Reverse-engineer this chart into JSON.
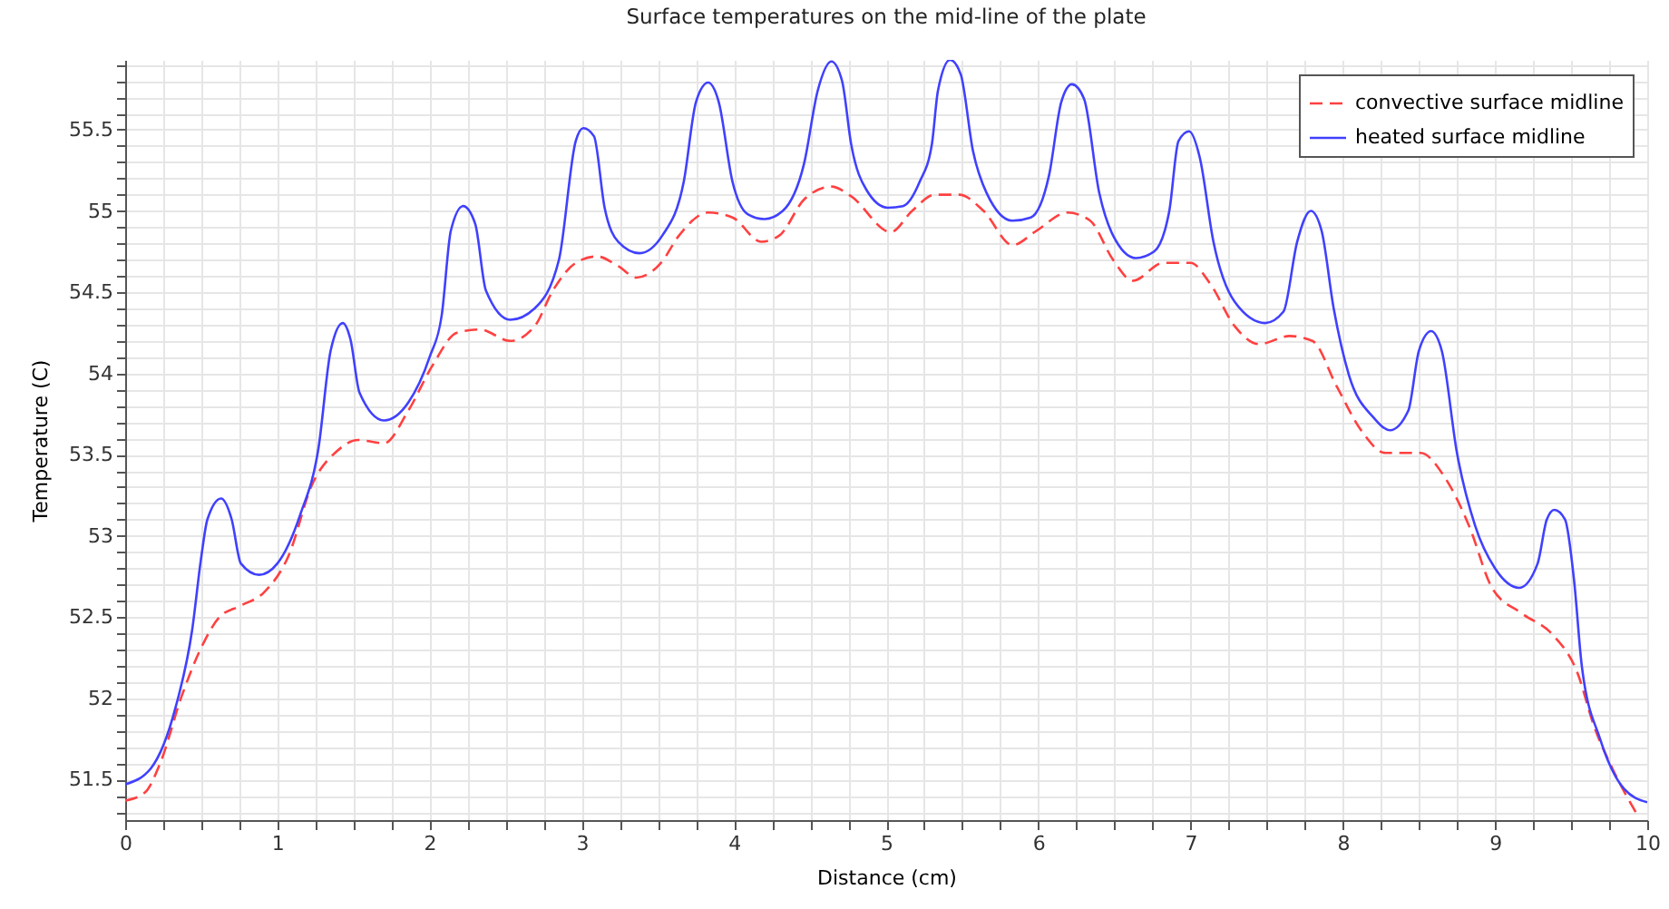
{
  "chart_data": {
    "type": "line",
    "title": "Surface temperatures on the mid-line of the plate",
    "xlabel": "Distance (cm)",
    "ylabel": "Temperature (C)",
    "xlim": [
      0,
      10
    ],
    "ylim": [
      51.25,
      55.93
    ],
    "xticks": [
      0,
      {
        "value": 0.25,
        "label": null
      },
      {
        "value": 0.5,
        "label": null
      },
      {
        "value": 0.75,
        "label": null
      },
      1,
      {
        "value": 1.25,
        "label": null
      },
      {
        "value": 1.5,
        "label": null
      },
      {
        "value": 1.75,
        "label": null
      },
      2,
      {
        "value": 2.25,
        "label": null
      },
      {
        "value": 2.5,
        "label": null
      },
      {
        "value": 2.75,
        "label": null
      },
      3,
      {
        "value": 3.25,
        "label": null
      },
      {
        "value": 3.5,
        "label": null
      },
      {
        "value": 3.75,
        "label": null
      },
      4,
      {
        "value": 4.25,
        "label": null
      },
      {
        "value": 4.5,
        "label": null
      },
      {
        "value": 4.75,
        "label": null
      },
      5,
      {
        "value": 5.25,
        "label": null
      },
      {
        "value": 5.5,
        "label": null
      },
      {
        "value": 5.75,
        "label": null
      },
      6,
      {
        "value": 6.25,
        "label": null
      },
      {
        "value": 6.5,
        "label": null
      },
      {
        "value": 6.75,
        "label": null
      },
      7,
      {
        "value": 7.25,
        "label": null
      },
      {
        "value": 7.5,
        "label": null
      },
      {
        "value": 7.75,
        "label": null
      },
      8,
      {
        "value": 8.25,
        "label": null
      },
      {
        "value": 8.5,
        "label": null
      },
      {
        "value": 8.75,
        "label": null
      },
      9,
      {
        "value": 9.25,
        "label": null
      },
      {
        "value": 9.5,
        "label": null
      },
      {
        "value": 9.75,
        "label": null
      },
      10
    ],
    "yticks": [
      {
        "value": 51.3,
        "label": null
      },
      {
        "value": 51.4,
        "label": null
      },
      51.5,
      {
        "value": 51.6,
        "label": null
      },
      {
        "value": 51.7,
        "label": null
      },
      {
        "value": 51.8,
        "label": null
      },
      {
        "value": 51.9,
        "label": null
      },
      52,
      {
        "value": 52.1,
        "label": null
      },
      {
        "value": 52.2,
        "label": null
      },
      {
        "value": 52.3,
        "label": null
      },
      {
        "value": 52.4,
        "label": null
      },
      52.5,
      {
        "value": 52.6,
        "label": null
      },
      {
        "value": 52.7,
        "label": null
      },
      {
        "value": 52.8,
        "label": null
      },
      {
        "value": 52.9,
        "label": null
      },
      53,
      {
        "value": 53.1,
        "label": null
      },
      {
        "value": 53.2,
        "label": null
      },
      {
        "value": 53.3,
        "label": null
      },
      {
        "value": 53.4,
        "label": null
      },
      53.5,
      {
        "value": 53.6,
        "label": null
      },
      {
        "value": 53.7,
        "label": null
      },
      {
        "value": 53.8,
        "label": null
      },
      {
        "value": 53.9,
        "label": null
      },
      54,
      {
        "value": 54.1,
        "label": null
      },
      {
        "value": 54.2,
        "label": null
      },
      {
        "value": 54.3,
        "label": null
      },
      {
        "value": 54.4,
        "label": null
      },
      54.5,
      {
        "value": 54.6,
        "label": null
      },
      {
        "value": 54.7,
        "label": null
      },
      {
        "value": 54.8,
        "label": null
      },
      {
        "value": 54.9,
        "label": null
      },
      55,
      {
        "value": 55.1,
        "label": null
      },
      {
        "value": 55.2,
        "label": null
      },
      {
        "value": 55.3,
        "label": null
      },
      {
        "value": 55.4,
        "label": null
      },
      55.5,
      {
        "value": 55.6,
        "label": null
      },
      {
        "value": 55.7,
        "label": null
      },
      {
        "value": 55.8,
        "label": null
      },
      {
        "value": 55.9,
        "label": null
      }
    ],
    "grid": true,
    "legend": "top right",
    "series": [
      {
        "name": "convective surface midline",
        "color": "#ff4040",
        "line_style": "dashed",
        "x": [
          0,
          0.13,
          0.23,
          0.37,
          0.52,
          0.62,
          0.76,
          0.91,
          1.07,
          1.23,
          1.39,
          1.53,
          1.7,
          1.86,
          2.02,
          2.18,
          2.33,
          2.53,
          2.69,
          2.81,
          2.96,
          3.1,
          3.24,
          3.36,
          3.52,
          3.64,
          3.83,
          3.99,
          4.18,
          4.3,
          4.46,
          4.64,
          4.77,
          5.03,
          5.17,
          5.32,
          5.48,
          5.64,
          5.83,
          5.99,
          6.19,
          6.34,
          6.49,
          6.62,
          6.82,
          7,
          7.13,
          7.29,
          7.45,
          7.65,
          7.8,
          7.96,
          8.12,
          8.28,
          8.51,
          8.67,
          8.83,
          8.98,
          9.18,
          9.38,
          9.54,
          9.65,
          9.77,
          9.93
        ],
        "values": [
          51.37,
          51.42,
          51.6,
          52.01,
          52.35,
          52.5,
          52.57,
          52.65,
          52.87,
          53.32,
          53.52,
          53.59,
          53.57,
          53.77,
          54.05,
          54.25,
          54.27,
          54.2,
          54.29,
          54.51,
          54.68,
          54.72,
          54.66,
          54.59,
          54.68,
          54.85,
          54.99,
          54.96,
          54.81,
          54.85,
          55.07,
          55.15,
          55.09,
          54.87,
          55,
          55.1,
          55.1,
          55,
          54.79,
          54.88,
          54.99,
          54.94,
          54.7,
          54.57,
          54.68,
          54.68,
          54.55,
          54.29,
          54.18,
          54.23,
          54.2,
          53.92,
          53.65,
          53.51,
          53.51,
          53.36,
          53.06,
          52.68,
          52.52,
          52.39,
          52.16,
          51.83,
          51.57,
          51.29
        ]
      },
      {
        "name": "heated surface midline",
        "color": "#4040ff",
        "line_style": "solid",
        "x": [
          0,
          0.17,
          0.33,
          0.44,
          0.5,
          0.54,
          0.63,
          0.7,
          0.76,
          0.88,
          1,
          1.15,
          1.27,
          1.35,
          1.43,
          1.48,
          1.54,
          1.7,
          1.86,
          2,
          2.08,
          2.14,
          2.22,
          2.3,
          2.37,
          2.53,
          2.69,
          2.85,
          2.96,
          3.01,
          3.08,
          3.15,
          3.24,
          3.38,
          3.53,
          3.67,
          3.75,
          3.83,
          3.9,
          3.99,
          4.09,
          4.2,
          4.32,
          4.46,
          4.55,
          4.64,
          4.71,
          4.77,
          4.87,
          5.01,
          5.11,
          5.22,
          5.3,
          5.34,
          5.42,
          5.49,
          5.57,
          5.66,
          5.83,
          5.95,
          6.07,
          6.15,
          6.22,
          6.3,
          6.4,
          6.49,
          6.64,
          6.76,
          6.86,
          6.92,
          6.99,
          7.06,
          7.15,
          7.29,
          7.49,
          7.61,
          7.7,
          7.79,
          7.86,
          7.94,
          8.04,
          8.2,
          8.31,
          8.43,
          8.5,
          8.58,
          8.65,
          8.75,
          8.87,
          9,
          9.16,
          9.28,
          9.34,
          9.39,
          9.46,
          9.52,
          9.57,
          9.69,
          9.85,
          10
        ],
        "values": [
          51.47,
          51.57,
          51.94,
          52.42,
          52.87,
          53.1,
          53.23,
          53.1,
          52.83,
          52.76,
          52.83,
          53.13,
          53.54,
          54.14,
          54.31,
          54.21,
          53.88,
          53.71,
          53.82,
          54.1,
          54.36,
          54.88,
          55.03,
          54.92,
          54.51,
          54.33,
          54.4,
          54.7,
          55.43,
          55.51,
          55.46,
          55.02,
          54.81,
          54.74,
          54.85,
          55.18,
          55.67,
          55.79,
          55.67,
          55.18,
          54.98,
          54.95,
          55,
          55.29,
          55.74,
          55.92,
          55.8,
          55.41,
          55.13,
          55.02,
          55.03,
          55.18,
          55.41,
          55.74,
          55.93,
          55.84,
          55.37,
          55.11,
          54.94,
          54.96,
          55.22,
          55.67,
          55.78,
          55.69,
          55.11,
          54.85,
          54.71,
          54.75,
          55,
          55.43,
          55.49,
          55.33,
          54.81,
          54.44,
          54.31,
          54.38,
          54.81,
          55,
          54.88,
          54.4,
          53.99,
          53.73,
          53.65,
          53.77,
          54.14,
          54.26,
          54.14,
          53.51,
          53.06,
          52.8,
          52.68,
          52.83,
          53.1,
          53.16,
          53.1,
          52.72,
          52.2,
          51.75,
          51.44,
          51.36
        ]
      }
    ]
  }
}
